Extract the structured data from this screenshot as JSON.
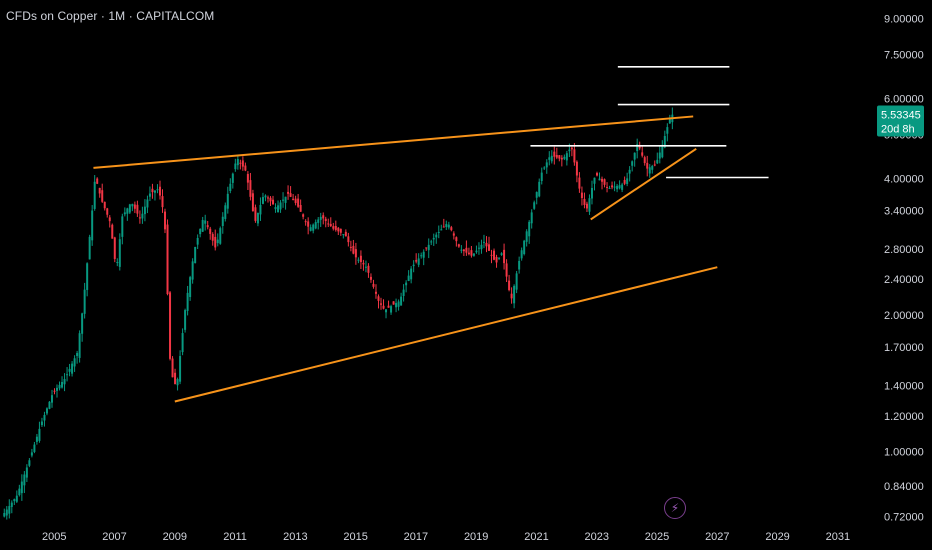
{
  "header": {
    "title": "CFDs on Copper · 1M · CAPITALCOM"
  },
  "price_badge": {
    "price": "5.53345",
    "countdown": "20d 8h",
    "color": "#089981"
  },
  "alert_button": {
    "icon": "lightning-bolt-icon",
    "glyph": "⚡",
    "color": "#9b59b6"
  },
  "colors": {
    "background": "#000000",
    "up_candle": "#089981",
    "down_candle": "#f23645",
    "trendline": "#f7931a",
    "level_line": "#ffffff",
    "text": "#d1d4dc"
  },
  "chart_data": {
    "type": "candlestick",
    "title": "CFDs on Copper · 1M · CAPITALCOM",
    "scale": "log",
    "grid": false,
    "x_ticks": [
      "2005",
      "2007",
      "2009",
      "2011",
      "2013",
      "2015",
      "2017",
      "2019",
      "2021",
      "2023",
      "2025",
      "2027",
      "2029",
      "2031"
    ],
    "x_range": [
      2003.2,
      2032.0
    ],
    "y_ticks": [
      9.0,
      7.5,
      6.0,
      5.0,
      4.0,
      3.4,
      2.8,
      2.4,
      2.0,
      1.7,
      1.4,
      1.2,
      1.0,
      0.84,
      0.72
    ],
    "y_tick_labels": [
      "9.00000",
      "7.50000",
      "6.00000",
      "5.00000",
      "4.00000",
      "3.40000",
      "2.80000",
      "2.40000",
      "2.00000",
      "1.70000",
      "1.40000",
      "1.20000",
      "1.00000",
      "0.84000",
      "0.72000"
    ],
    "y_range": [
      0.7,
      9.5
    ],
    "last_price": 5.53345,
    "price_path": [
      [
        2003.3,
        0.72
      ],
      [
        2003.8,
        0.8
      ],
      [
        2004.2,
        0.95
      ],
      [
        2004.6,
        1.15
      ],
      [
        2005.0,
        1.35
      ],
      [
        2005.4,
        1.45
      ],
      [
        2005.8,
        1.65
      ],
      [
        2006.0,
        2.1
      ],
      [
        2006.3,
        3.4
      ],
      [
        2006.4,
        4.05
      ],
      [
        2006.6,
        3.6
      ],
      [
        2006.9,
        3.2
      ],
      [
        2007.1,
        2.5
      ],
      [
        2007.3,
        3.3
      ],
      [
        2007.6,
        3.55
      ],
      [
        2007.9,
        3.25
      ],
      [
        2008.2,
        3.7
      ],
      [
        2008.5,
        3.8
      ],
      [
        2008.7,
        3.3
      ],
      [
        2008.9,
        1.5
      ],
      [
        2009.1,
        1.38
      ],
      [
        2009.4,
        2.1
      ],
      [
        2009.7,
        2.8
      ],
      [
        2010.0,
        3.3
      ],
      [
        2010.4,
        2.8
      ],
      [
        2010.8,
        3.7
      ],
      [
        2011.1,
        4.45
      ],
      [
        2011.4,
        4.15
      ],
      [
        2011.7,
        3.2
      ],
      [
        2012.0,
        3.7
      ],
      [
        2012.4,
        3.45
      ],
      [
        2012.8,
        3.7
      ],
      [
        2013.1,
        3.5
      ],
      [
        2013.5,
        3.1
      ],
      [
        2013.9,
        3.3
      ],
      [
        2014.3,
        3.1
      ],
      [
        2014.7,
        3.0
      ],
      [
        2015.0,
        2.7
      ],
      [
        2015.4,
        2.55
      ],
      [
        2015.8,
        2.15
      ],
      [
        2016.0,
        2.05
      ],
      [
        2016.5,
        2.15
      ],
      [
        2016.9,
        2.55
      ],
      [
        2017.2,
        2.7
      ],
      [
        2017.7,
        3.0
      ],
      [
        2018.1,
        3.2
      ],
      [
        2018.5,
        2.8
      ],
      [
        2018.9,
        2.7
      ],
      [
        2019.3,
        2.9
      ],
      [
        2019.7,
        2.6
      ],
      [
        2019.9,
        2.75
      ],
      [
        2020.2,
        2.15
      ],
      [
        2020.5,
        2.7
      ],
      [
        2020.9,
        3.4
      ],
      [
        2021.2,
        4.1
      ],
      [
        2021.5,
        4.5
      ],
      [
        2021.9,
        4.4
      ],
      [
        2022.2,
        4.7
      ],
      [
        2022.5,
        3.7
      ],
      [
        2022.7,
        3.4
      ],
      [
        2023.0,
        4.1
      ],
      [
        2023.4,
        3.8
      ],
      [
        2023.7,
        3.85
      ],
      [
        2024.0,
        3.9
      ],
      [
        2024.4,
        4.8
      ],
      [
        2024.7,
        4.2
      ],
      [
        2025.0,
        4.3
      ],
      [
        2025.2,
        4.7
      ],
      [
        2025.5,
        5.53
      ]
    ],
    "trendlines": [
      {
        "name": "upper-resistance",
        "from": [
          2006.3,
          4.22
        ],
        "to": [
          2026.2,
          5.48
        ],
        "color": "#f7931a"
      },
      {
        "name": "lower-support",
        "from": [
          2009.0,
          1.29
        ],
        "to": [
          2027.0,
          2.55
        ],
        "color": "#f7931a"
      },
      {
        "name": "short-term-support",
        "from": [
          2022.8,
          3.25
        ],
        "to": [
          2026.3,
          4.65
        ],
        "color": "#f7931a"
      }
    ],
    "horizontal_levels": [
      {
        "name": "level-7",
        "price": 7.05,
        "from": 2023.7,
        "to": 2027.4
      },
      {
        "name": "level-5-8",
        "price": 5.82,
        "from": 2023.7,
        "to": 2027.4
      },
      {
        "name": "level-4-65",
        "price": 4.72,
        "from": 2020.8,
        "to": 2027.3
      },
      {
        "name": "level-4",
        "price": 4.02,
        "from": 2025.3,
        "to": 2028.7
      }
    ]
  }
}
